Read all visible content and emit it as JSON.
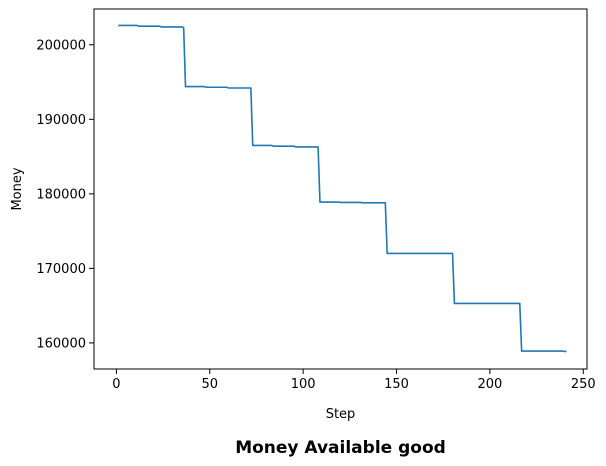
{
  "chart_data": {
    "type": "line",
    "title": "Money Available good",
    "xlabel": "Step",
    "ylabel": "Money",
    "xlim": [
      -12,
      252
    ],
    "ylim": [
      156500,
      204800
    ],
    "xticks": [
      0,
      50,
      100,
      150,
      200,
      250
    ],
    "yticks": [
      160000,
      170000,
      180000,
      190000,
      200000
    ],
    "grid": false,
    "series": [
      {
        "color": "#1f77b4",
        "x": [
          1,
          11,
          12,
          23,
          24,
          35,
          36,
          37,
          47,
          48,
          59,
          60,
          71,
          72,
          73,
          83,
          84,
          95,
          96,
          107,
          108,
          109,
          119,
          120,
          131,
          132,
          143,
          144,
          145,
          155,
          156,
          167,
          168,
          179,
          180,
          181,
          191,
          192,
          203,
          204,
          215,
          216,
          217,
          227,
          228,
          239,
          240,
          241
        ],
        "y": [
          202600,
          202600,
          202500,
          202500,
          202400,
          202400,
          202300,
          194400,
          194400,
          194300,
          194300,
          194200,
          194200,
          194200,
          186500,
          186500,
          186400,
          186400,
          186300,
          186300,
          186300,
          178900,
          178900,
          178850,
          178850,
          178800,
          178800,
          178800,
          172000,
          172000,
          172000,
          172000,
          172000,
          172000,
          172000,
          165300,
          165300,
          165300,
          165300,
          165300,
          165300,
          165300,
          158900,
          158900,
          158900,
          158900,
          158850,
          158850
        ]
      }
    ]
  }
}
